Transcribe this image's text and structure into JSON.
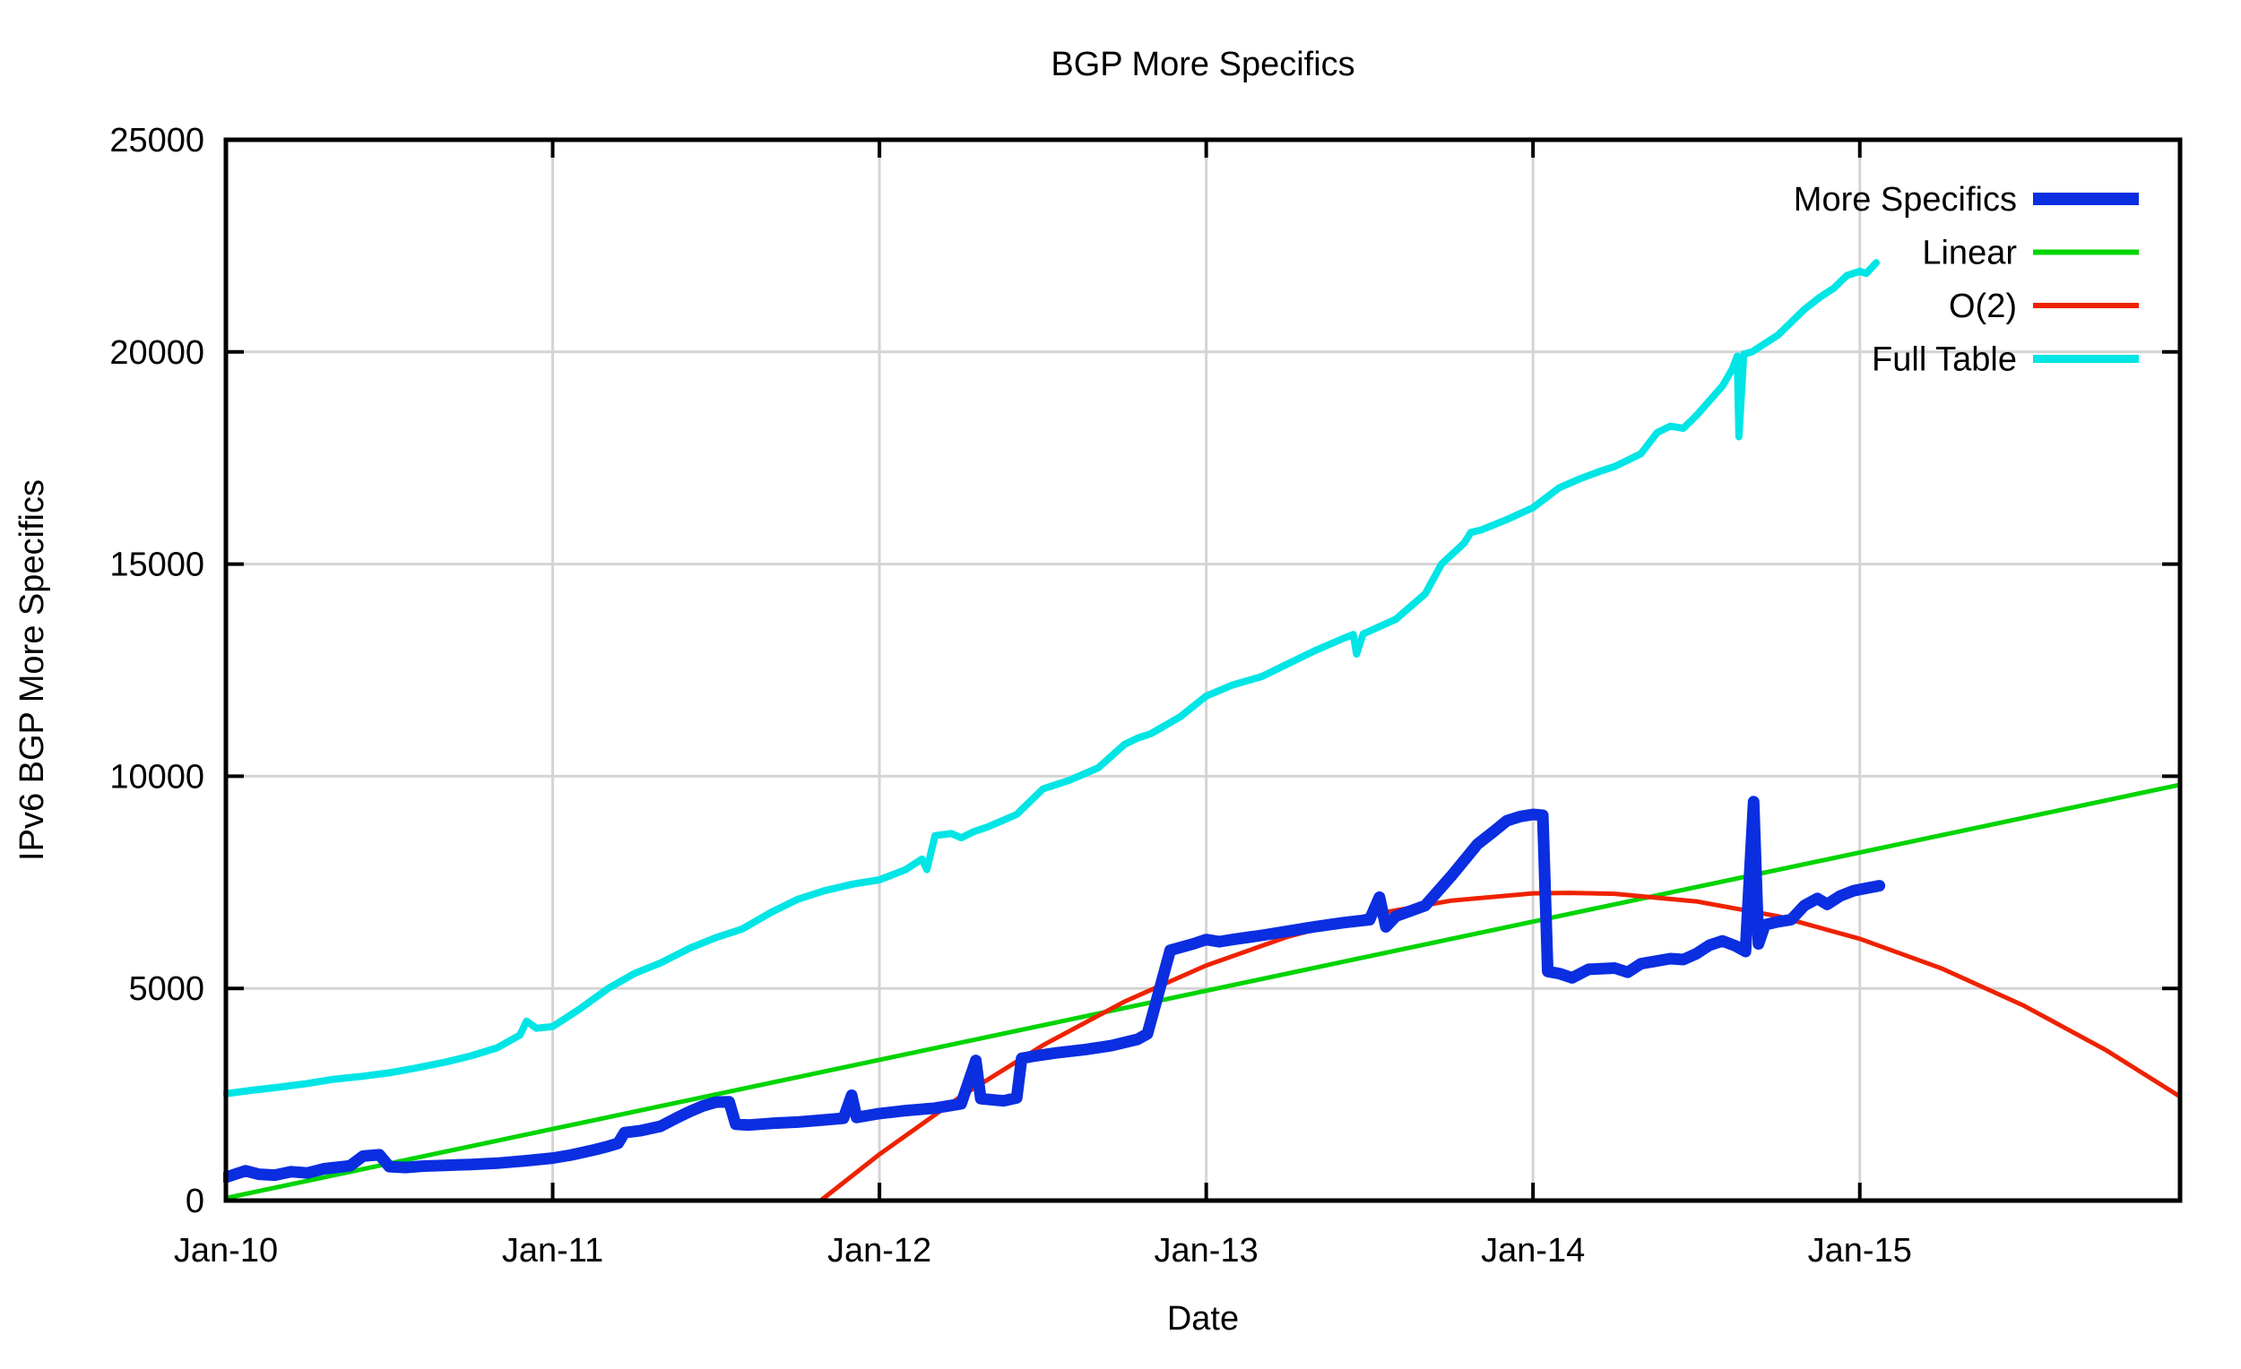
{
  "chart_data": {
    "type": "line",
    "title": "BGP More Specifics",
    "xlabel": "Date",
    "ylabel": "IPv6 BGP More Specifics",
    "x_domain_years": [
      2010.0,
      2015.98
    ],
    "ylim": [
      0,
      25000
    ],
    "grid": true,
    "legend_position": "top-right-inside",
    "axis_color": "#000000",
    "grid_color": "#d4d4d4",
    "x_ticks": [
      {
        "t": 2010.0,
        "label": "Jan-10"
      },
      {
        "t": 2011.0,
        "label": "Jan-11"
      },
      {
        "t": 2012.0,
        "label": "Jan-12"
      },
      {
        "t": 2013.0,
        "label": "Jan-13"
      },
      {
        "t": 2014.0,
        "label": "Jan-14"
      },
      {
        "t": 2015.0,
        "label": "Jan-15"
      }
    ],
    "y_ticks": [
      {
        "v": 0,
        "label": "0"
      },
      {
        "v": 5000,
        "label": "5000"
      },
      {
        "v": 10000,
        "label": "10000"
      },
      {
        "v": 15000,
        "label": "15000"
      },
      {
        "v": 20000,
        "label": "20000"
      },
      {
        "v": 25000,
        "label": "25000"
      }
    ],
    "series": [
      {
        "name": "More Specifics",
        "color": "#0a2ee0",
        "width": 13,
        "points": [
          [
            2010.0,
            550
          ],
          [
            2010.06,
            700
          ],
          [
            2010.1,
            620
          ],
          [
            2010.15,
            600
          ],
          [
            2010.2,
            680
          ],
          [
            2010.25,
            650
          ],
          [
            2010.3,
            750
          ],
          [
            2010.38,
            820
          ],
          [
            2010.42,
            1050
          ],
          [
            2010.47,
            1080
          ],
          [
            2010.5,
            800
          ],
          [
            2010.55,
            780
          ],
          [
            2010.6,
            810
          ],
          [
            2010.67,
            830
          ],
          [
            2010.75,
            850
          ],
          [
            2010.83,
            880
          ],
          [
            2010.92,
            940
          ],
          [
            2011.0,
            1000
          ],
          [
            2011.06,
            1080
          ],
          [
            2011.13,
            1200
          ],
          [
            2011.17,
            1280
          ],
          [
            2011.2,
            1350
          ],
          [
            2011.22,
            1600
          ],
          [
            2011.27,
            1650
          ],
          [
            2011.33,
            1750
          ],
          [
            2011.38,
            1950
          ],
          [
            2011.42,
            2100
          ],
          [
            2011.46,
            2230
          ],
          [
            2011.5,
            2320
          ],
          [
            2011.54,
            2330
          ],
          [
            2011.56,
            1800
          ],
          [
            2011.6,
            1780
          ],
          [
            2011.67,
            1820
          ],
          [
            2011.75,
            1850
          ],
          [
            2011.83,
            1900
          ],
          [
            2011.89,
            1940
          ],
          [
            2011.915,
            2480
          ],
          [
            2011.93,
            1960
          ],
          [
            2012.0,
            2050
          ],
          [
            2012.08,
            2120
          ],
          [
            2012.17,
            2180
          ],
          [
            2012.25,
            2280
          ],
          [
            2012.295,
            3300
          ],
          [
            2012.31,
            2400
          ],
          [
            2012.38,
            2350
          ],
          [
            2012.42,
            2420
          ],
          [
            2012.435,
            3350
          ],
          [
            2012.47,
            3400
          ],
          [
            2012.54,
            3480
          ],
          [
            2012.63,
            3560
          ],
          [
            2012.71,
            3650
          ],
          [
            2012.79,
            3800
          ],
          [
            2012.82,
            3930
          ],
          [
            2012.89,
            5900
          ],
          [
            2012.96,
            6050
          ],
          [
            2013.0,
            6150
          ],
          [
            2013.04,
            6100
          ],
          [
            2013.08,
            6150
          ],
          [
            2013.17,
            6250
          ],
          [
            2013.25,
            6350
          ],
          [
            2013.33,
            6450
          ],
          [
            2013.42,
            6550
          ],
          [
            2013.5,
            6620
          ],
          [
            2013.53,
            7150
          ],
          [
            2013.55,
            6450
          ],
          [
            2013.58,
            6700
          ],
          [
            2013.67,
            6950
          ],
          [
            2013.75,
            7650
          ],
          [
            2013.83,
            8400
          ],
          [
            2013.88,
            8700
          ],
          [
            2013.92,
            8950
          ],
          [
            2013.96,
            9050
          ],
          [
            2014.0,
            9100
          ],
          [
            2014.03,
            9080
          ],
          [
            2014.045,
            5400
          ],
          [
            2014.08,
            5350
          ],
          [
            2014.12,
            5250
          ],
          [
            2014.17,
            5450
          ],
          [
            2014.25,
            5480
          ],
          [
            2014.29,
            5380
          ],
          [
            2014.33,
            5580
          ],
          [
            2014.42,
            5700
          ],
          [
            2014.46,
            5680
          ],
          [
            2014.5,
            5820
          ],
          [
            2014.54,
            6020
          ],
          [
            2014.58,
            6120
          ],
          [
            2014.62,
            6000
          ],
          [
            2014.65,
            5870
          ],
          [
            2014.675,
            9400
          ],
          [
            2014.69,
            6050
          ],
          [
            2014.71,
            6500
          ],
          [
            2014.75,
            6570
          ],
          [
            2014.79,
            6620
          ],
          [
            2014.83,
            6950
          ],
          [
            2014.87,
            7120
          ],
          [
            2014.9,
            6980
          ],
          [
            2014.94,
            7180
          ],
          [
            2014.98,
            7300
          ],
          [
            2015.02,
            7360
          ],
          [
            2015.06,
            7420
          ]
        ]
      },
      {
        "name": "Linear",
        "color": "#00d400",
        "width": 5,
        "points": [
          [
            2010.0,
            60
          ],
          [
            2015.98,
            9800
          ]
        ]
      },
      {
        "name": "O(2)",
        "color": "#ee2200",
        "width": 5,
        "points": [
          [
            2011.82,
            0
          ],
          [
            2012.0,
            1090
          ],
          [
            2012.25,
            2460
          ],
          [
            2012.5,
            3660
          ],
          [
            2012.75,
            4690
          ],
          [
            2013.0,
            5540
          ],
          [
            2013.25,
            6220
          ],
          [
            2013.5,
            6730
          ],
          [
            2013.75,
            7070
          ],
          [
            2014.0,
            7240
          ],
          [
            2014.11,
            7250
          ],
          [
            2014.25,
            7230
          ],
          [
            2014.5,
            7050
          ],
          [
            2014.75,
            6700
          ],
          [
            2015.0,
            6170
          ],
          [
            2015.25,
            5470
          ],
          [
            2015.5,
            4600
          ],
          [
            2015.75,
            3560
          ],
          [
            2015.98,
            2450
          ]
        ]
      },
      {
        "name": "Full Table",
        "color": "#00e5e5",
        "width": 8,
        "points": [
          [
            2010.0,
            2520
          ],
          [
            2010.08,
            2600
          ],
          [
            2010.17,
            2680
          ],
          [
            2010.25,
            2760
          ],
          [
            2010.33,
            2860
          ],
          [
            2010.42,
            2930
          ],
          [
            2010.5,
            3010
          ],
          [
            2010.58,
            3120
          ],
          [
            2010.67,
            3260
          ],
          [
            2010.75,
            3410
          ],
          [
            2010.83,
            3600
          ],
          [
            2010.9,
            3900
          ],
          [
            2010.92,
            4230
          ],
          [
            2010.95,
            4060
          ],
          [
            2011.0,
            4100
          ],
          [
            2011.08,
            4500
          ],
          [
            2011.17,
            5000
          ],
          [
            2011.25,
            5350
          ],
          [
            2011.33,
            5600
          ],
          [
            2011.42,
            5950
          ],
          [
            2011.5,
            6200
          ],
          [
            2011.58,
            6400
          ],
          [
            2011.67,
            6800
          ],
          [
            2011.75,
            7100
          ],
          [
            2011.83,
            7300
          ],
          [
            2011.92,
            7460
          ],
          [
            2012.0,
            7560
          ],
          [
            2012.08,
            7800
          ],
          [
            2012.13,
            8050
          ],
          [
            2012.145,
            7800
          ],
          [
            2012.17,
            8600
          ],
          [
            2012.22,
            8650
          ],
          [
            2012.25,
            8550
          ],
          [
            2012.29,
            8700
          ],
          [
            2012.33,
            8800
          ],
          [
            2012.42,
            9100
          ],
          [
            2012.5,
            9700
          ],
          [
            2012.58,
            9900
          ],
          [
            2012.67,
            10200
          ],
          [
            2012.75,
            10750
          ],
          [
            2012.79,
            10900
          ],
          [
            2012.83,
            11000
          ],
          [
            2012.92,
            11400
          ],
          [
            2013.0,
            11890
          ],
          [
            2013.08,
            12150
          ],
          [
            2013.17,
            12350
          ],
          [
            2013.25,
            12650
          ],
          [
            2013.33,
            12950
          ],
          [
            2013.42,
            13250
          ],
          [
            2013.45,
            13340
          ],
          [
            2013.46,
            12880
          ],
          [
            2013.48,
            13350
          ],
          [
            2013.58,
            13700
          ],
          [
            2013.67,
            14300
          ],
          [
            2013.72,
            15000
          ],
          [
            2013.79,
            15500
          ],
          [
            2013.81,
            15750
          ],
          [
            2013.84,
            15800
          ],
          [
            2013.92,
            16050
          ],
          [
            2014.0,
            16330
          ],
          [
            2014.08,
            16800
          ],
          [
            2014.14,
            17000
          ],
          [
            2014.21,
            17200
          ],
          [
            2014.25,
            17300
          ],
          [
            2014.33,
            17600
          ],
          [
            2014.38,
            18100
          ],
          [
            2014.42,
            18250
          ],
          [
            2014.46,
            18200
          ],
          [
            2014.5,
            18500
          ],
          [
            2014.58,
            19200
          ],
          [
            2014.61,
            19600
          ],
          [
            2014.625,
            19900
          ],
          [
            2014.63,
            18000
          ],
          [
            2014.645,
            19950
          ],
          [
            2014.67,
            20000
          ],
          [
            2014.75,
            20400
          ],
          [
            2014.83,
            21000
          ],
          [
            2014.88,
            21300
          ],
          [
            2014.92,
            21500
          ],
          [
            2014.96,
            21800
          ],
          [
            2015.0,
            21900
          ],
          [
            2015.02,
            21850
          ],
          [
            2015.05,
            22100
          ]
        ]
      }
    ]
  }
}
